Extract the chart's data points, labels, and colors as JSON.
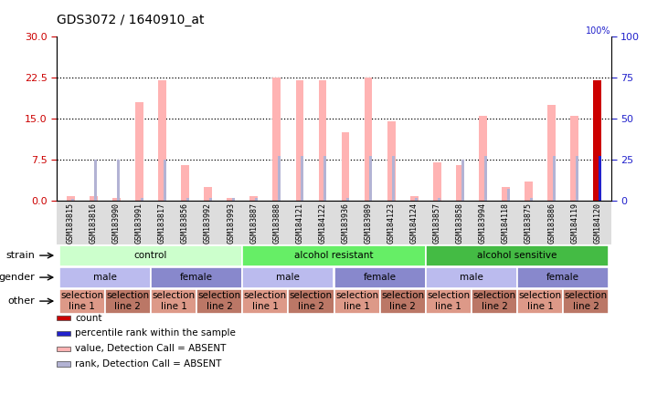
{
  "title": "GDS3072 / 1640910_at",
  "samples": [
    "GSM183815",
    "GSM183816",
    "GSM183990",
    "GSM183991",
    "GSM183817",
    "GSM183856",
    "GSM183992",
    "GSM183993",
    "GSM183887",
    "GSM183888",
    "GSM184121",
    "GSM184122",
    "GSM183936",
    "GSM183989",
    "GSM184123",
    "GSM184124",
    "GSM183857",
    "GSM183858",
    "GSM183994",
    "GSM184118",
    "GSM183875",
    "GSM183886",
    "GSM184119",
    "GSM184120"
  ],
  "bar_heights": [
    0.8,
    0.9,
    0.5,
    18.0,
    22.0,
    6.5,
    2.5,
    0.5,
    0.8,
    22.5,
    22.0,
    22.0,
    12.5,
    22.5,
    14.5,
    0.8,
    7.0,
    6.5,
    15.5,
    2.5,
    3.5,
    17.5,
    15.5,
    22.0
  ],
  "rank_heights_pct": [
    1.0,
    25.0,
    25.0,
    1.5,
    25.0,
    1.5,
    1.5,
    1.5,
    1.5,
    27.0,
    27.0,
    27.0,
    1.5,
    27.0,
    27.0,
    1.5,
    1.5,
    25.0,
    27.0,
    7.0,
    1.5,
    27.0,
    27.0,
    27.0
  ],
  "is_present": [
    false,
    false,
    false,
    false,
    false,
    false,
    false,
    false,
    false,
    false,
    false,
    false,
    false,
    false,
    false,
    false,
    false,
    false,
    false,
    false,
    false,
    false,
    false,
    true
  ],
  "bar_color_absent": "#ffb3b3",
  "rank_color_absent": "#b3b3d4",
  "bar_color_present": "#cc0000",
  "rank_color_present": "#2222cc",
  "ylim_left": [
    0,
    30
  ],
  "yticks_left": [
    0,
    7.5,
    15,
    22.5,
    30
  ],
  "ylim_right": [
    0,
    100
  ],
  "yticks_right": [
    0,
    25,
    50,
    75,
    100
  ],
  "left_tick_color": "#cc0000",
  "right_tick_color": "#2222cc",
  "strain_groups": [
    {
      "label": "control",
      "start": 0,
      "end": 8,
      "color": "#ccffcc"
    },
    {
      "label": "alcohol resistant",
      "start": 8,
      "end": 16,
      "color": "#66ee66"
    },
    {
      "label": "alcohol sensitive",
      "start": 16,
      "end": 24,
      "color": "#44bb44"
    }
  ],
  "gender_groups": [
    {
      "label": "male",
      "start": 0,
      "end": 4,
      "color": "#bbbbee"
    },
    {
      "label": "female",
      "start": 4,
      "end": 8,
      "color": "#8888cc"
    },
    {
      "label": "male",
      "start": 8,
      "end": 12,
      "color": "#bbbbee"
    },
    {
      "label": "female",
      "start": 12,
      "end": 16,
      "color": "#8888cc"
    },
    {
      "label": "male",
      "start": 16,
      "end": 20,
      "color": "#bbbbee"
    },
    {
      "label": "female",
      "start": 20,
      "end": 24,
      "color": "#8888cc"
    }
  ],
  "other_groups": [
    {
      "label": "selection\nline 1",
      "start": 0,
      "end": 2,
      "color": "#dd9988"
    },
    {
      "label": "selection\nline 2",
      "start": 2,
      "end": 4,
      "color": "#bb7766"
    },
    {
      "label": "selection\nline 1",
      "start": 4,
      "end": 6,
      "color": "#dd9988"
    },
    {
      "label": "selection\nline 2",
      "start": 6,
      "end": 8,
      "color": "#bb7766"
    },
    {
      "label": "selection\nline 1",
      "start": 8,
      "end": 10,
      "color": "#dd9988"
    },
    {
      "label": "selection\nline 2",
      "start": 10,
      "end": 12,
      "color": "#bb7766"
    },
    {
      "label": "selection\nline 1",
      "start": 12,
      "end": 14,
      "color": "#dd9988"
    },
    {
      "label": "selection\nline 2",
      "start": 14,
      "end": 16,
      "color": "#bb7766"
    },
    {
      "label": "selection\nline 1",
      "start": 16,
      "end": 18,
      "color": "#dd9988"
    },
    {
      "label": "selection\nline 2",
      "start": 18,
      "end": 20,
      "color": "#bb7766"
    },
    {
      "label": "selection\nline 1",
      "start": 20,
      "end": 22,
      "color": "#dd9988"
    },
    {
      "label": "selection\nline 2",
      "start": 22,
      "end": 24,
      "color": "#bb7766"
    }
  ],
  "legend_items": [
    {
      "label": "count",
      "color": "#cc0000"
    },
    {
      "label": "percentile rank within the sample",
      "color": "#2222cc"
    },
    {
      "label": "value, Detection Call = ABSENT",
      "color": "#ffb3b3"
    },
    {
      "label": "rank, Detection Call = ABSENT",
      "color": "#b3b3d4"
    }
  ],
  "row_labels": [
    "strain",
    "gender",
    "other"
  ],
  "background_color": "#ffffff"
}
